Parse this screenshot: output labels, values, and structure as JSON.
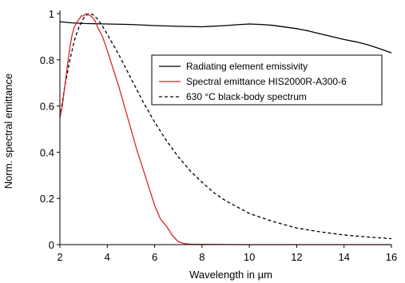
{
  "chart_data": {
    "type": "line",
    "xlabel": "Wavelength in µm",
    "ylabel": "Norm. spectral emittance",
    "xlim": [
      2,
      16
    ],
    "ylim": [
      0,
      1
    ],
    "x_ticks": [
      "2",
      "4",
      "6",
      "8",
      "10",
      "12",
      "14",
      "16"
    ],
    "y_ticks": [
      "0",
      "0.2",
      "0.4",
      "0.6",
      "0.8",
      "1"
    ],
    "grid": false,
    "legend_position": "center-right",
    "series": [
      {
        "name": "Radiating element emissivity",
        "color": "#000000",
        "dash": "solid",
        "x": [
          2.0,
          2.5,
          3.0,
          4.0,
          5.0,
          6.0,
          7.0,
          8.0,
          9.0,
          9.5,
          10.0,
          10.5,
          11.0,
          11.5,
          12.0,
          12.5,
          13.0,
          13.5,
          14.0,
          14.5,
          15.0,
          15.5,
          16.0
        ],
        "y": [
          0.965,
          0.96,
          0.957,
          0.955,
          0.953,
          0.948,
          0.945,
          0.943,
          0.948,
          0.952,
          0.955,
          0.953,
          0.949,
          0.942,
          0.935,
          0.925,
          0.912,
          0.9,
          0.888,
          0.878,
          0.865,
          0.848,
          0.83
        ]
      },
      {
        "name": "Spectral emittance HIS2000R-A300-6",
        "color": "#d9242b",
        "dash": "solid",
        "x": [
          2.0,
          2.1,
          2.2,
          2.3,
          2.4,
          2.5,
          2.6,
          2.7,
          2.8,
          2.9,
          3.0,
          3.1,
          3.2,
          3.3,
          3.4,
          3.5,
          3.6,
          3.8,
          4.0,
          4.25,
          4.5,
          4.75,
          5.0,
          5.25,
          5.5,
          5.75,
          6.0,
          6.25,
          6.5,
          6.75,
          7.0,
          7.25,
          7.5,
          8.0,
          10.0,
          12.0,
          14.0,
          16.0
        ],
        "y": [
          0.55,
          0.6,
          0.68,
          0.76,
          0.84,
          0.9,
          0.94,
          0.96,
          0.975,
          0.99,
          0.99,
          1.0,
          0.995,
          0.99,
          0.98,
          0.965,
          0.94,
          0.9,
          0.84,
          0.76,
          0.68,
          0.59,
          0.5,
          0.41,
          0.33,
          0.25,
          0.17,
          0.11,
          0.08,
          0.04,
          0.012,
          0.005,
          0.002,
          0.001,
          0.0,
          0.0,
          0.0,
          0.0
        ]
      },
      {
        "name": "630 °C black-body spectrum",
        "color": "#000000",
        "dash": "dashed",
        "x": [
          2.0,
          2.2,
          2.4,
          2.6,
          2.8,
          3.0,
          3.2,
          3.4,
          3.6,
          3.8,
          4.0,
          4.5,
          5.0,
          5.5,
          6.0,
          6.5,
          7.0,
          7.5,
          8.0,
          8.5,
          9.0,
          10.0,
          11.0,
          12.0,
          13.0,
          14.0,
          15.0,
          16.0
        ],
        "y": [
          0.55,
          0.68,
          0.79,
          0.88,
          0.94,
          0.98,
          1.0,
          0.995,
          0.975,
          0.945,
          0.91,
          0.82,
          0.72,
          0.62,
          0.53,
          0.45,
          0.38,
          0.32,
          0.27,
          0.225,
          0.19,
          0.135,
          0.1,
          0.072,
          0.055,
          0.042,
          0.033,
          0.026
        ]
      }
    ]
  }
}
